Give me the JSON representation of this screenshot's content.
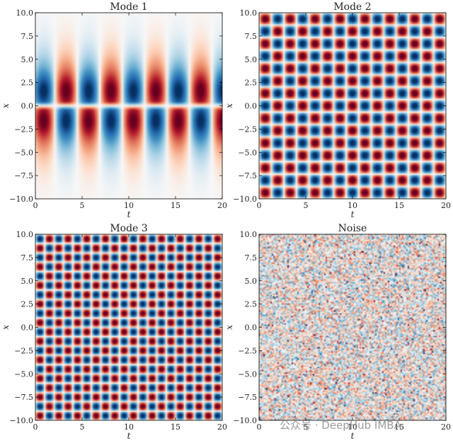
{
  "chart_data": [
    {
      "type": "heatmap",
      "title": "Mode 1",
      "xlabel": "t",
      "ylabel": "x",
      "xlim": [
        0,
        20
      ],
      "ylim": [
        -10.0,
        10.0
      ],
      "x_ticks": [
        "0",
        "5",
        "10",
        "15",
        "20"
      ],
      "y_ticks": [
        "10.0",
        "7.5",
        "5.0",
        "2.5",
        "0.0",
        "−2.5",
        "−5.0",
        "−7.5",
        "−10.0"
      ],
      "colormap": "RdBu",
      "pattern": "oscillating sech-shaped spatial mode, antisymmetric about x = 0",
      "time_period": 4.8,
      "spatial_width": 2.8,
      "spatial_offset": 0.4
    },
    {
      "type": "heatmap",
      "title": "Mode 2",
      "xlabel": "t",
      "ylabel": "x",
      "xlim": [
        0,
        20
      ],
      "ylim": [
        -10.0,
        10.0
      ],
      "x_ticks": [
        "0",
        "5",
        "10",
        "15",
        "20"
      ],
      "y_ticks": [
        "10.0",
        "7.5",
        "5.0",
        "2.5",
        "0.0",
        "−2.5",
        "−5.0",
        "−7.5",
        "−10.0"
      ],
      "colormap": "RdBu",
      "pattern": "checkerboard of alternating sinusoids",
      "cells_t": 15,
      "cells_x": 15
    },
    {
      "type": "heatmap",
      "title": "Mode 3",
      "xlabel": "t",
      "ylabel": "x",
      "xlim": [
        0,
        20
      ],
      "ylim": [
        -10.0,
        10.0
      ],
      "x_ticks": [
        "0",
        "5",
        "10",
        "15",
        "20"
      ],
      "y_ticks": [
        "10.0",
        "7.5",
        "5.0",
        "2.5",
        "0.0",
        "−2.5",
        "−5.0",
        "−7.5",
        "−10.0"
      ],
      "colormap": "RdBu",
      "pattern": "fine checkerboard of alternating sinusoids",
      "cells_t": 20,
      "cells_x": 20
    },
    {
      "type": "heatmap",
      "title": "Noise",
      "xlabel": "t",
      "ylabel": "x",
      "xlim": [
        0,
        20
      ],
      "ylim": [
        -10.0,
        10.0
      ],
      "x_ticks": [
        "0",
        "5",
        "10",
        "15",
        "20"
      ],
      "y_ticks": [
        "10.0",
        "7.5",
        "5.0",
        "2.5",
        "0.0",
        "−2.5",
        "−5.0",
        "−7.5",
        "−10.0"
      ],
      "colormap": "RdBu",
      "pattern": "random noise"
    }
  ],
  "watermark": "公众号 · DeepHub IMBA",
  "colors": {
    "negative": "#053061",
    "neutral": "#f7f7f7",
    "positive": "#67001f"
  }
}
